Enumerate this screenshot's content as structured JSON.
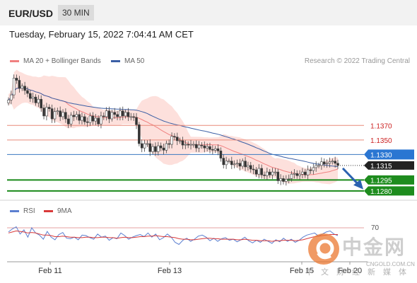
{
  "header": {
    "pair": "EUR/USD",
    "timeframe": "30 MIN"
  },
  "timestamp": "Tuesday, February 15, 2022 7:04:41 AM CET",
  "legend": {
    "bollinger": "MA 20 + Bollinger Bands",
    "ma50": "MA 50",
    "rsi": "RSI",
    "rsi_ma": "9MA"
  },
  "credit": "Research © 2022 Trading Central",
  "colors": {
    "bollinger": "#f08080",
    "band_fill": "#fde0dc",
    "ma50": "#3b5fa5",
    "candle": "#444444",
    "resistance_line": "#e88a7a",
    "pivot_line": "#3a78c0",
    "support_line": "#1a8a1a",
    "rsi": "#5b7fd0",
    "rsi_ma": "#d93a3a",
    "arrow": "#2b62b0"
  },
  "watermark": {
    "cn": "中金网",
    "url": "CNGOLD.COM.CN",
    "sub": "中文财经新媒体"
  },
  "chart_data": {
    "type": "candlestick",
    "x_tick_labels": [
      "Feb 11",
      "Feb 13",
      "Feb 15",
      "Feb 20"
    ],
    "ylim": [
      1.1275,
      1.145
    ],
    "levels": [
      {
        "value": 1.137,
        "label": "1.1370",
        "kind": "resistance"
      },
      {
        "value": 1.135,
        "label": "1.1350",
        "kind": "resistance"
      },
      {
        "value": 1.133,
        "label": "1.1330",
        "kind": "pivot"
      },
      {
        "value": 1.1315,
        "label": "1.1315",
        "kind": "last"
      },
      {
        "value": 1.1295,
        "label": "1.1295",
        "kind": "support"
      },
      {
        "value": 1.128,
        "label": "1.1280",
        "kind": "support"
      }
    ],
    "price_close": [
      1.1405,
      1.1412,
      1.1435,
      1.1432,
      1.1421,
      1.1424,
      1.1418,
      1.1414,
      1.1407,
      1.1409,
      1.1401,
      1.1406,
      1.1394,
      1.1383,
      1.1395,
      1.1393,
      1.1379,
      1.1389,
      1.139,
      1.1382,
      1.1388,
      1.1379,
      1.1372,
      1.1384,
      1.1382,
      1.1385,
      1.1377,
      1.1382,
      1.1375,
      1.1374,
      1.1383,
      1.1376,
      1.138,
      1.1372,
      1.1383,
      1.1382,
      1.139,
      1.1379,
      1.1388,
      1.1385,
      1.1382,
      1.139,
      1.1383,
      1.1388,
      1.1382,
      1.1382,
      1.1381,
      1.1371,
      1.1345,
      1.1339,
      1.1345,
      1.1345,
      1.1334,
      1.1341,
      1.1334,
      1.1342,
      1.1339,
      1.1336,
      1.1345,
      1.1344,
      1.1355,
      1.1354,
      1.1349,
      1.1349,
      1.1343,
      1.1344,
      1.1343,
      1.1344,
      1.1344,
      1.1339,
      1.1343,
      1.1342,
      1.1339,
      1.1341,
      1.1337,
      1.1336,
      1.1338,
      1.1335,
      1.1325,
      1.1316,
      1.1321,
      1.1321,
      1.1316,
      1.1317,
      1.1318,
      1.1314,
      1.1321,
      1.1313,
      1.1315,
      1.131,
      1.1309,
      1.1303,
      1.1311,
      1.1302,
      1.1301,
      1.1306,
      1.1302,
      1.1306,
      1.1306,
      1.1294,
      1.1297,
      1.1293,
      1.1296,
      1.1297,
      1.1303,
      1.1304,
      1.1301,
      1.1303,
      1.1306,
      1.1302,
      1.1309,
      1.1308,
      1.1312,
      1.1315,
      1.1315,
      1.132,
      1.1317,
      1.1318,
      1.132,
      1.1321,
      1.1318,
      1.1315
    ],
    "rsi_axis_label": "70",
    "rsi_series": [
      62,
      68,
      72,
      58,
      66,
      52,
      70,
      60,
      56,
      48,
      63,
      52,
      47,
      57,
      61,
      50,
      49,
      52,
      47,
      56,
      55,
      51,
      48,
      58,
      52,
      54,
      46,
      51,
      49,
      60,
      55,
      48,
      52,
      55,
      57,
      53,
      60,
      52,
      58,
      47,
      51,
      58,
      52,
      42,
      38,
      46,
      50,
      44,
      48,
      54,
      56,
      52,
      45,
      50,
      44,
      49,
      51,
      46,
      48,
      43,
      47,
      52,
      45,
      41,
      46,
      42,
      48,
      44,
      40,
      47,
      43,
      50,
      44,
      48,
      42,
      46,
      52,
      56,
      58,
      60,
      54,
      58,
      62,
      64,
      58,
      55
    ],
    "rsi_ma_series": [
      60,
      62,
      64,
      63,
      62,
      60,
      61,
      60,
      58,
      56,
      56,
      55,
      53,
      53,
      54,
      53,
      52,
      52,
      51,
      51,
      52,
      52,
      51,
      51,
      52,
      52,
      51,
      51,
      50,
      51,
      52,
      51,
      51,
      52,
      53,
      53,
      54,
      54,
      55,
      54,
      53,
      53,
      52,
      51,
      49,
      48,
      48,
      47,
      47,
      48,
      49,
      50,
      50,
      49,
      49,
      48,
      48,
      48,
      48,
      47,
      47,
      48,
      47,
      46,
      46,
      45,
      45,
      45,
      44,
      45,
      45,
      46,
      46,
      46,
      45,
      46,
      47,
      49,
      51,
      53,
      54,
      55,
      56,
      57,
      57,
      57
    ]
  }
}
